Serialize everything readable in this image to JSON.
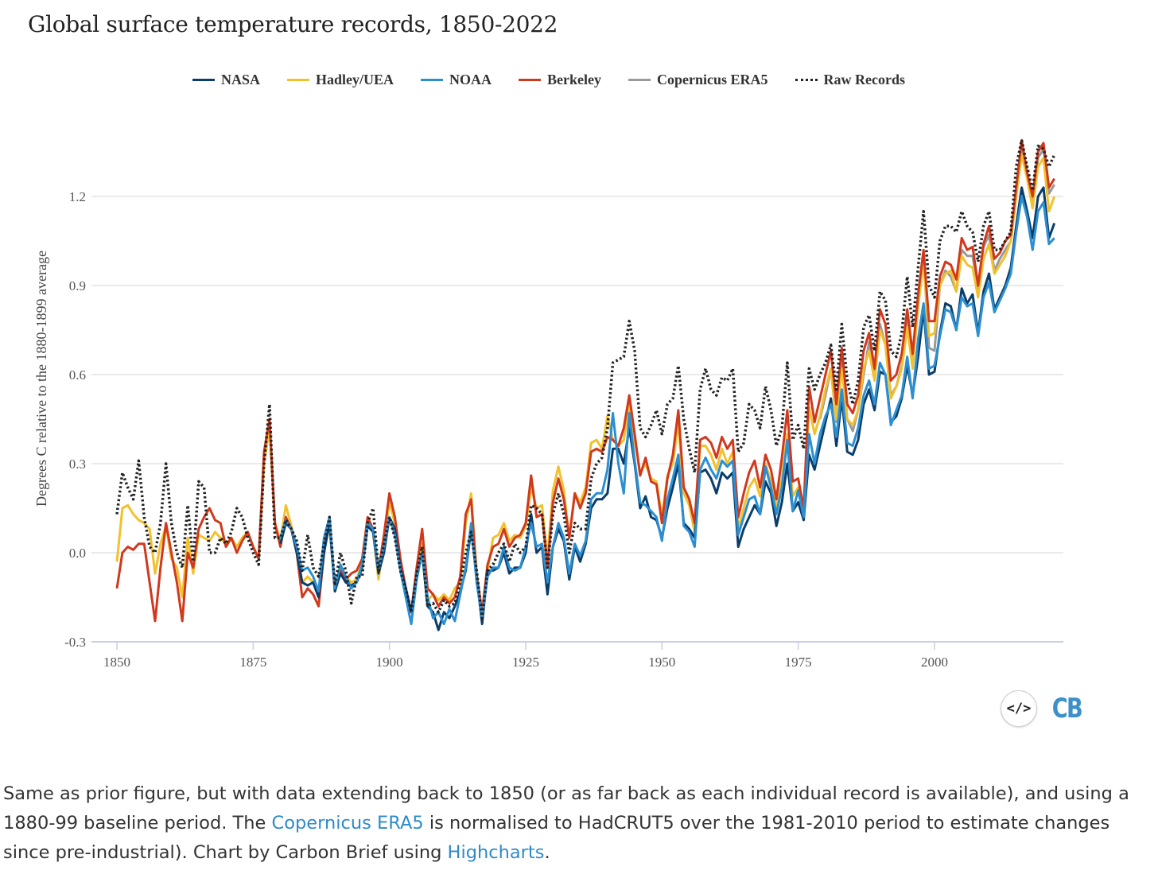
{
  "chart_data": {
    "type": "line",
    "title": "Global surface temperature records, 1850-2022",
    "xlabel": "",
    "ylabel": "Degrees C relative to the 1880-1899 average",
    "xlim": [
      1850,
      2022
    ],
    "ylim": [
      -0.3,
      1.4
    ],
    "yticks": [
      -0.3,
      0.0,
      0.3,
      0.6,
      0.9,
      1.2
    ],
    "ytick_labels": [
      "-0.3",
      "0.0",
      "0.3",
      "0.6",
      "0.9",
      "1.2"
    ],
    "xticks": [
      1850,
      1875,
      1900,
      1925,
      1950,
      1975,
      2000
    ],
    "xtick_labels": [
      "1850",
      "1875",
      "1900",
      "1925",
      "1950",
      "1975",
      "2000"
    ],
    "grid": true,
    "legend_position": "top-center",
    "series": [
      {
        "name": "NASA",
        "color": "#0b3d6b",
        "style": "solid",
        "start": 1880,
        "values": [
          0.03,
          0.1,
          0.08,
          0.0,
          -0.1,
          -0.11,
          -0.1,
          -0.15,
          0.0,
          0.1,
          -0.13,
          -0.07,
          -0.1,
          -0.11,
          -0.1,
          -0.05,
          0.09,
          0.07,
          -0.07,
          0.0,
          0.12,
          0.08,
          -0.05,
          -0.12,
          -0.2,
          -0.08,
          0.0,
          -0.18,
          -0.2,
          -0.26,
          -0.2,
          -0.22,
          -0.18,
          -0.13,
          -0.06,
          0.08,
          -0.08,
          -0.24,
          -0.06,
          -0.06,
          -0.05,
          0.0,
          -0.07,
          -0.05,
          -0.05,
          0.0,
          0.13,
          0.0,
          0.02,
          -0.14,
          0.02,
          0.08,
          0.04,
          -0.09,
          0.02,
          -0.03,
          0.03,
          0.15,
          0.18,
          0.18,
          0.2,
          0.35,
          0.35,
          0.3,
          0.42,
          0.3,
          0.15,
          0.19,
          0.12,
          0.11,
          0.05,
          0.15,
          0.22,
          0.3,
          0.1,
          0.08,
          0.05,
          0.27,
          0.28,
          0.25,
          0.2,
          0.27,
          0.25,
          0.27,
          0.02,
          0.08,
          0.12,
          0.16,
          0.13,
          0.24,
          0.2,
          0.09,
          0.17,
          0.3,
          0.14,
          0.17,
          0.11,
          0.33,
          0.28,
          0.36,
          0.44,
          0.52,
          0.36,
          0.52,
          0.34,
          0.33,
          0.38,
          0.5,
          0.55,
          0.48,
          0.61,
          0.6,
          0.44,
          0.46,
          0.52,
          0.63,
          0.53,
          0.66,
          0.82,
          0.6,
          0.61,
          0.74,
          0.84,
          0.83,
          0.75,
          0.89,
          0.84,
          0.87,
          0.74,
          0.88,
          0.94,
          0.82,
          0.86,
          0.9,
          0.96,
          1.1,
          1.23,
          1.15,
          1.06,
          1.2,
          1.23,
          1.06,
          1.11
        ]
      },
      {
        "name": "Hadley/UEA",
        "color": "#f2c12e",
        "style": "solid",
        "start": 1850,
        "values": [
          -0.03,
          0.15,
          0.16,
          0.13,
          0.11,
          0.1,
          0.08,
          -0.07,
          0.03,
          0.09,
          -0.02,
          -0.05,
          -0.15,
          0.05,
          -0.07,
          0.06,
          0.05,
          0.04,
          0.07,
          0.05,
          0.03,
          0.05,
          0.02,
          0.05,
          0.07,
          0.02,
          -0.02,
          0.3,
          0.42,
          0.1,
          0.04,
          0.16,
          0.09,
          0.02,
          -0.1,
          -0.08,
          -0.1,
          -0.15,
          0.01,
          0.1,
          -0.12,
          -0.05,
          -0.08,
          -0.1,
          -0.09,
          -0.03,
          0.11,
          0.07,
          -0.09,
          0.04,
          0.17,
          0.1,
          -0.04,
          -0.14,
          -0.2,
          -0.07,
          0.03,
          -0.16,
          -0.14,
          -0.16,
          -0.14,
          -0.16,
          -0.12,
          -0.1,
          0.1,
          0.2,
          -0.07,
          -0.2,
          -0.06,
          0.05,
          0.06,
          0.1,
          0.04,
          0.06,
          0.05,
          0.09,
          0.22,
          0.15,
          0.16,
          -0.02,
          0.21,
          0.29,
          0.21,
          0.05,
          0.2,
          0.17,
          0.22,
          0.37,
          0.38,
          0.35,
          0.46,
          0.38,
          0.36,
          0.38,
          0.5,
          0.38,
          0.27,
          0.3,
          0.25,
          0.24,
          0.12,
          0.26,
          0.3,
          0.44,
          0.2,
          0.16,
          0.07,
          0.36,
          0.36,
          0.33,
          0.28,
          0.35,
          0.3,
          0.34,
          0.08,
          0.15,
          0.22,
          0.25,
          0.19,
          0.3,
          0.24,
          0.15,
          0.25,
          0.4,
          0.19,
          0.22,
          0.13,
          0.49,
          0.4,
          0.46,
          0.55,
          0.62,
          0.45,
          0.62,
          0.45,
          0.43,
          0.48,
          0.62,
          0.68,
          0.58,
          0.75,
          0.7,
          0.52,
          0.56,
          0.62,
          0.76,
          0.62,
          0.83,
          0.98,
          0.73,
          0.74,
          0.9,
          0.94,
          0.95,
          0.88,
          1.0,
          0.97,
          0.96,
          0.86,
          0.99,
          1.04,
          0.94,
          0.97,
          1.0,
          1.05,
          1.2,
          1.34,
          1.26,
          1.16,
          1.3,
          1.33,
          1.15,
          1.2
        ]
      },
      {
        "name": "NOAA",
        "color": "#2b8fd1",
        "style": "solid",
        "start": 1880,
        "values": [
          0.05,
          0.11,
          0.08,
          0.02,
          -0.06,
          -0.05,
          -0.08,
          -0.13,
          0.05,
          0.12,
          -0.12,
          -0.04,
          -0.08,
          -0.12,
          -0.1,
          -0.04,
          0.1,
          0.08,
          -0.06,
          0.02,
          0.12,
          0.06,
          -0.06,
          -0.15,
          -0.24,
          -0.09,
          0.0,
          -0.15,
          -0.22,
          -0.2,
          -0.24,
          -0.19,
          -0.23,
          -0.14,
          -0.05,
          0.1,
          -0.1,
          -0.22,
          -0.08,
          -0.05,
          -0.05,
          0.02,
          -0.05,
          -0.06,
          -0.05,
          0.02,
          0.1,
          0.02,
          0.03,
          -0.1,
          0.02,
          0.1,
          0.05,
          -0.07,
          0.03,
          -0.01,
          0.04,
          0.18,
          0.2,
          0.2,
          0.28,
          0.47,
          0.3,
          0.2,
          0.47,
          0.31,
          0.17,
          0.16,
          0.14,
          0.12,
          0.04,
          0.18,
          0.25,
          0.33,
          0.09,
          0.07,
          0.02,
          0.28,
          0.32,
          0.28,
          0.25,
          0.31,
          0.29,
          0.31,
          0.06,
          0.12,
          0.18,
          0.19,
          0.13,
          0.29,
          0.22,
          0.13,
          0.22,
          0.38,
          0.14,
          0.21,
          0.12,
          0.4,
          0.3,
          0.4,
          0.46,
          0.5,
          0.39,
          0.55,
          0.37,
          0.36,
          0.42,
          0.53,
          0.58,
          0.5,
          0.64,
          0.6,
          0.43,
          0.48,
          0.53,
          0.66,
          0.52,
          0.72,
          0.84,
          0.62,
          0.63,
          0.73,
          0.82,
          0.81,
          0.75,
          0.86,
          0.83,
          0.84,
          0.73,
          0.86,
          0.91,
          0.81,
          0.85,
          0.89,
          0.94,
          1.08,
          1.2,
          1.13,
          1.02,
          1.15,
          1.18,
          1.04,
          1.06
        ]
      },
      {
        "name": "Berkeley",
        "color": "#d0391d",
        "style": "solid",
        "start": 1850,
        "values": [
          -0.12,
          0.0,
          0.02,
          0.01,
          0.03,
          0.03,
          -0.1,
          -0.23,
          -0.05,
          0.1,
          0.0,
          -0.1,
          -0.23,
          0.0,
          -0.05,
          0.08,
          0.12,
          0.15,
          0.11,
          0.1,
          0.02,
          0.05,
          0.0,
          0.04,
          0.07,
          0.02,
          -0.02,
          0.34,
          0.45,
          0.1,
          0.02,
          0.12,
          0.08,
          0.0,
          -0.15,
          -0.12,
          -0.14,
          -0.18,
          0.0,
          0.12,
          -0.13,
          -0.06,
          -0.09,
          -0.07,
          -0.06,
          -0.02,
          0.12,
          0.08,
          -0.06,
          0.06,
          0.2,
          0.12,
          -0.02,
          -0.12,
          -0.2,
          -0.05,
          0.08,
          -0.12,
          -0.14,
          -0.18,
          -0.15,
          -0.17,
          -0.15,
          -0.08,
          0.13,
          0.18,
          -0.08,
          -0.2,
          -0.04,
          0.02,
          0.03,
          0.08,
          0.02,
          0.05,
          0.06,
          0.1,
          0.26,
          0.12,
          0.13,
          -0.05,
          0.17,
          0.25,
          0.18,
          0.05,
          0.2,
          0.15,
          0.2,
          0.34,
          0.35,
          0.34,
          0.39,
          0.38,
          0.36,
          0.42,
          0.53,
          0.4,
          0.26,
          0.32,
          0.24,
          0.23,
          0.1,
          0.25,
          0.33,
          0.48,
          0.22,
          0.18,
          0.1,
          0.38,
          0.39,
          0.37,
          0.32,
          0.39,
          0.35,
          0.38,
          0.12,
          0.2,
          0.27,
          0.31,
          0.22,
          0.33,
          0.28,
          0.18,
          0.32,
          0.48,
          0.24,
          0.25,
          0.15,
          0.56,
          0.44,
          0.52,
          0.6,
          0.68,
          0.5,
          0.69,
          0.5,
          0.47,
          0.53,
          0.68,
          0.74,
          0.62,
          0.82,
          0.77,
          0.58,
          0.6,
          0.67,
          0.82,
          0.67,
          0.87,
          1.02,
          0.78,
          0.78,
          0.93,
          0.98,
          0.97,
          0.92,
          1.06,
          1.02,
          1.03,
          0.9,
          1.04,
          1.1,
          0.99,
          1.01,
          1.05,
          1.07,
          1.23,
          1.39,
          1.28,
          1.2,
          1.35,
          1.38,
          1.23,
          1.26
        ]
      },
      {
        "name": "Copernicus ERA5",
        "color": "#9a9a9a",
        "style": "solid",
        "start": 1979,
        "values": [
          0.45,
          0.53,
          0.62,
          0.44,
          0.66,
          0.45,
          0.41,
          0.48,
          0.6,
          0.71,
          0.6,
          0.77,
          0.7,
          0.53,
          0.56,
          0.63,
          0.8,
          0.65,
          0.83,
          1.0,
          0.69,
          0.68,
          0.9,
          0.95,
          0.93,
          0.88,
          1.02,
          1.0,
          1.0,
          0.89,
          1.03,
          1.07,
          0.95,
          0.99,
          1.02,
          1.05,
          1.2,
          1.37,
          1.27,
          1.18,
          1.33,
          1.36,
          1.21,
          1.24
        ]
      },
      {
        "name": "Raw Records",
        "color": "#222222",
        "style": "dotted",
        "start": 1850,
        "values": [
          0.13,
          0.27,
          0.22,
          0.18,
          0.31,
          0.12,
          0.02,
          0.0,
          0.1,
          0.3,
          0.1,
          0.0,
          -0.05,
          0.16,
          -0.03,
          0.24,
          0.22,
          0.0,
          0.0,
          0.05,
          0.03,
          0.07,
          0.15,
          0.12,
          0.05,
          0.0,
          -0.04,
          0.3,
          0.5,
          0.05,
          0.05,
          0.11,
          0.08,
          0.04,
          -0.06,
          0.06,
          -0.05,
          -0.08,
          0.03,
          0.12,
          -0.11,
          0.0,
          -0.06,
          -0.17,
          -0.08,
          -0.08,
          0.1,
          0.15,
          -0.06,
          0.03,
          0.12,
          0.05,
          -0.06,
          -0.12,
          -0.2,
          -0.07,
          0.02,
          -0.18,
          -0.17,
          -0.2,
          -0.16,
          -0.18,
          -0.17,
          -0.1,
          0.0,
          0.07,
          -0.06,
          -0.22,
          -0.06,
          -0.04,
          0.0,
          0.03,
          -0.03,
          0.03,
          0.0,
          0.02,
          0.16,
          0.15,
          0.13,
          -0.05,
          0.13,
          0.2,
          0.13,
          0.0,
          0.1,
          0.08,
          0.08,
          0.25,
          0.3,
          0.32,
          0.42,
          0.64,
          0.65,
          0.66,
          0.78,
          0.68,
          0.42,
          0.39,
          0.43,
          0.48,
          0.4,
          0.5,
          0.52,
          0.63,
          0.45,
          0.35,
          0.27,
          0.55,
          0.62,
          0.55,
          0.53,
          0.59,
          0.58,
          0.62,
          0.34,
          0.37,
          0.5,
          0.48,
          0.42,
          0.56,
          0.48,
          0.36,
          0.42,
          0.64,
          0.38,
          0.43,
          0.35,
          0.62,
          0.55,
          0.6,
          0.64,
          0.7,
          0.55,
          0.77,
          0.58,
          0.5,
          0.58,
          0.76,
          0.8,
          0.68,
          0.88,
          0.85,
          0.68,
          0.66,
          0.74,
          0.93,
          0.76,
          0.96,
          1.15,
          0.9,
          0.86,
          1.05,
          1.1,
          1.1,
          1.08,
          1.15,
          1.1,
          1.08,
          0.98,
          1.1,
          1.15,
          1.02,
          1.02,
          1.05,
          1.08,
          1.3,
          1.39,
          1.3,
          1.22,
          1.37,
          1.36,
          1.3,
          1.34
        ]
      }
    ]
  },
  "legend_order": [
    "NASA",
    "Hadley/UEA",
    "NOAA",
    "Berkeley",
    "Copernicus ERA5",
    "Raw Records"
  ],
  "embed_icon": "code-embed-icon",
  "logo_text": "CB",
  "caption": {
    "part1": "Same as prior figure, but with data extending back to 1850 (or as far back as each individual record is available), and using a 1880-99 baseline period. The ",
    "link1": "Copernicus ERA5",
    "part2": " is normalised to HadCRUT5 over the 1981-2010 period to estimate changes since pre-industrial). Chart by Carbon Brief using ",
    "link2": "Highcharts",
    "part3": "."
  }
}
